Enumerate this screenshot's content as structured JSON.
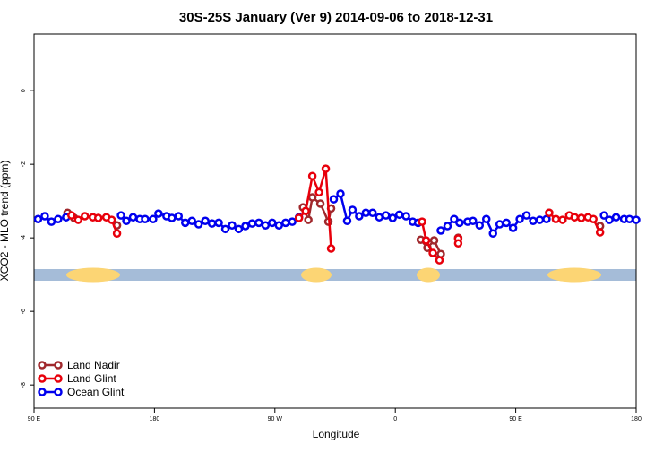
{
  "chart_data": {
    "type": "line",
    "title": "30S-25S January (Ver 9)   2014-09-06 to 2018-12-31",
    "xlabel": "Longitude",
    "ylabel": "XCO2 - MLO trend (ppm)",
    "xlim": [
      90,
      540
    ],
    "xticks": [
      {
        "value": 90,
        "label": "90 E"
      },
      180,
      {
        "value": 270,
        "label": "90 W"
      },
      {
        "value": 360,
        "label": "0"
      },
      {
        "value": 450,
        "label": "90 E"
      },
      {
        "value": 540,
        "label": "180"
      }
    ],
    "ylim": [
      -8.63,
      1.54
    ],
    "yticks": [
      0,
      -2,
      -4,
      -6,
      -8
    ],
    "legend": "bottom-left",
    "series": [
      {
        "name": "Land Nadir",
        "color": "#a0282c",
        "x": [
          115,
          120,
          130,
          152,
          200,
          291,
          295,
          298,
          304,
          310,
          312,
          350,
          379,
          384,
          389,
          394,
          400,
          407,
          460,
          475,
          500,
          513
        ],
        "values": [
          -3.32,
          -3.46,
          null,
          -3.66,
          null,
          -3.17,
          -3.51,
          -2.9,
          -3.07,
          -3.56,
          -3.2,
          null,
          -4.05,
          -4.27,
          -4.07,
          -4.44,
          null,
          -4.0,
          null,
          -3.32,
          null,
          -3.68
        ]
      },
      {
        "name": "Ocean Glint",
        "color": "#0000ee",
        "x": [
          93,
          98,
          103,
          108,
          114,
          130,
          155,
          159,
          164,
          169,
          173,
          179,
          183,
          189,
          193,
          198,
          203,
          208,
          213,
          218,
          223,
          228,
          233,
          238,
          243,
          248,
          253,
          258,
          263,
          268,
          273,
          278,
          283,
          288,
          300,
          314,
          319,
          324,
          328,
          333,
          338,
          343,
          348,
          353,
          358,
          363,
          368,
          373,
          377,
          385,
          394,
          399,
          404,
          408,
          414,
          418,
          423,
          428,
          433,
          438,
          443,
          448,
          453,
          458,
          463,
          468,
          473,
          500,
          516,
          520,
          525,
          531,
          535,
          540
        ],
        "values": [
          -3.49,
          -3.41,
          -3.56,
          -3.49,
          -3.44,
          null,
          -3.39,
          -3.54,
          -3.44,
          -3.49,
          -3.49,
          -3.49,
          -3.34,
          -3.41,
          -3.46,
          -3.41,
          -3.59,
          -3.54,
          -3.63,
          -3.54,
          -3.61,
          -3.59,
          -3.76,
          -3.66,
          -3.76,
          -3.68,
          -3.61,
          -3.59,
          -3.66,
          -3.59,
          -3.66,
          -3.59,
          -3.56,
          -3.44,
          null,
          -2.95,
          -2.8,
          -3.54,
          -3.24,
          -3.41,
          -3.32,
          -3.32,
          -3.44,
          -3.39,
          -3.46,
          -3.37,
          -3.41,
          -3.56,
          -3.59,
          null,
          -3.8,
          -3.68,
          -3.49,
          -3.59,
          -3.56,
          -3.54,
          -3.66,
          -3.49,
          -3.88,
          -3.63,
          -3.59,
          -3.73,
          -3.49,
          -3.39,
          -3.54,
          -3.51,
          -3.49,
          null,
          -3.39,
          -3.51,
          -3.44,
          -3.49,
          -3.49,
          -3.51
        ]
      },
      {
        "name": "Land Glint",
        "color": "#e8000b",
        "x": [
          118,
          123,
          128,
          134,
          138,
          144,
          148,
          152,
          240,
          288,
          293,
          298,
          303,
          308,
          312,
          350,
          380,
          383,
          388,
          393,
          400,
          407,
          407,
          460,
          475,
          480,
          485,
          490,
          494,
          499,
          504,
          508,
          513
        ],
        "values": [
          -3.39,
          -3.51,
          -3.41,
          -3.44,
          -3.46,
          -3.44,
          -3.51,
          -3.88,
          null,
          -3.46,
          -3.27,
          -2.32,
          -2.76,
          -2.12,
          -4.29,
          null,
          -3.56,
          -4.07,
          -4.41,
          -4.61,
          null,
          -4.02,
          -4.15,
          null,
          -3.32,
          -3.49,
          -3.51,
          -3.39,
          -3.44,
          -3.46,
          -3.44,
          -3.49,
          -3.85
        ]
      }
    ]
  }
}
